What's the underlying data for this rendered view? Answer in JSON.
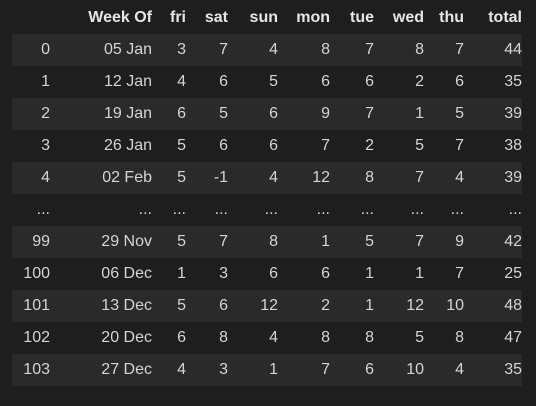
{
  "table": {
    "columns": [
      "",
      "Week Of",
      "fri",
      "sat",
      "sun",
      "mon",
      "tue",
      "wed",
      "thu",
      "total"
    ],
    "rows": [
      {
        "index": "0",
        "cells": [
          "05 Jan",
          "3",
          "7",
          "4",
          "8",
          "7",
          "8",
          "7",
          "44"
        ]
      },
      {
        "index": "1",
        "cells": [
          "12 Jan",
          "4",
          "6",
          "5",
          "6",
          "6",
          "2",
          "6",
          "35"
        ]
      },
      {
        "index": "2",
        "cells": [
          "19 Jan",
          "6",
          "5",
          "6",
          "9",
          "7",
          "1",
          "5",
          "39"
        ]
      },
      {
        "index": "3",
        "cells": [
          "26 Jan",
          "5",
          "6",
          "6",
          "7",
          "2",
          "5",
          "7",
          "38"
        ]
      },
      {
        "index": "4",
        "cells": [
          "02 Feb",
          "5",
          "-1",
          "4",
          "12",
          "8",
          "7",
          "4",
          "39"
        ]
      },
      {
        "index": "...",
        "cells": [
          "...",
          "...",
          "...",
          "...",
          "...",
          "...",
          "...",
          "...",
          "..."
        ]
      },
      {
        "index": "99",
        "cells": [
          "29 Nov",
          "5",
          "7",
          "8",
          "1",
          "5",
          "7",
          "9",
          "42"
        ]
      },
      {
        "index": "100",
        "cells": [
          "06 Dec",
          "1",
          "3",
          "6",
          "6",
          "1",
          "1",
          "7",
          "25"
        ]
      },
      {
        "index": "101",
        "cells": [
          "13 Dec",
          "5",
          "6",
          "12",
          "2",
          "1",
          "12",
          "10",
          "48"
        ]
      },
      {
        "index": "102",
        "cells": [
          "20 Dec",
          "6",
          "8",
          "4",
          "8",
          "8",
          "5",
          "8",
          "47"
        ]
      },
      {
        "index": "103",
        "cells": [
          "27 Dec",
          "4",
          "3",
          "1",
          "7",
          "6",
          "10",
          "4",
          "35"
        ]
      }
    ]
  },
  "colors": {
    "background": "#1e1e1e",
    "row_stripe": "#2a2a2a",
    "text": "#d4d4d4"
  }
}
